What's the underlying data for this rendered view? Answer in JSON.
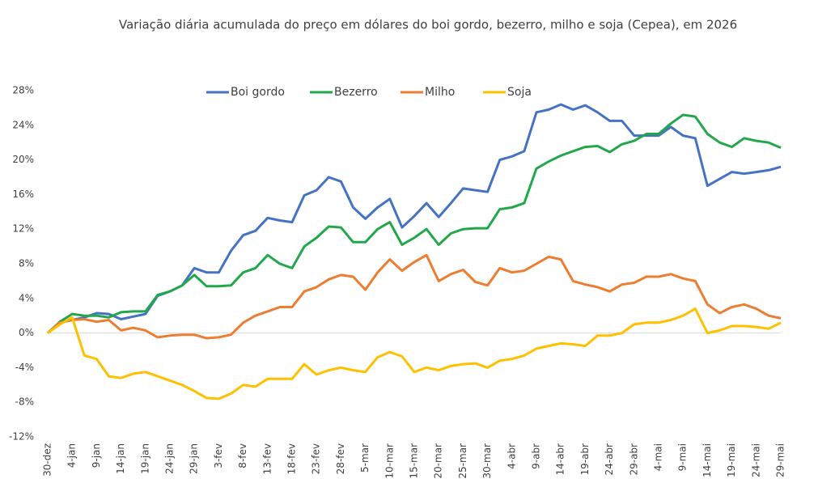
{
  "chart_data": {
    "type": "line",
    "title": "Variação diária acumulada do preço em dólares do boi gordo, bezerro, milho e soja (Cepea), em 2026",
    "categories": [
      "30-dez",
      null,
      "4-jan",
      null,
      "9-jan",
      null,
      "14-jan",
      null,
      "19-jan",
      null,
      "24-jan",
      null,
      "29-jan",
      null,
      "3-fev",
      null,
      "8-fev",
      null,
      "13-fev",
      null,
      "18-fev",
      null,
      "23-fev",
      null,
      "28-fev",
      null,
      "5-mar",
      null,
      "10-mar",
      null,
      "15-mar",
      null,
      "20-mar",
      null,
      "25-mar",
      null,
      "30-mar",
      null,
      "4-abr",
      null,
      "9-abr",
      null,
      "14-abr",
      null,
      "19-abr",
      null,
      "24-abr",
      null,
      "29-abr",
      null,
      "4-mai",
      null,
      "9-mai",
      null,
      "14-mai",
      null,
      "19-mai",
      null,
      "24-mai",
      null,
      "29-mai"
    ],
    "series": [
      {
        "name": "Boi gordo",
        "color": "#4472c4",
        "values": [
          0,
          1.2,
          1.5,
          1.8,
          2.3,
          2.2,
          1.6,
          1.9,
          2.2,
          4.3,
          4.8,
          5.5,
          7.5,
          7.0,
          7.0,
          9.5,
          11.3,
          11.8,
          13.3,
          13.0,
          12.8,
          15.9,
          16.5,
          18.0,
          17.5,
          14.5,
          13.2,
          14.5,
          15.5,
          12.2,
          13.5,
          15.0,
          13.4,
          15.0,
          16.7,
          16.5,
          16.3,
          20.0,
          20.4,
          21.0,
          25.5,
          25.8,
          26.4,
          25.8,
          26.3,
          25.5,
          24.5,
          24.5,
          22.8,
          22.8,
          22.8,
          23.8,
          22.8,
          22.5,
          17.0,
          17.8,
          18.6,
          18.4,
          18.6,
          18.8,
          19.2
        ]
      },
      {
        "name": "Bezerro",
        "color": "#22a84a",
        "values": [
          0,
          1.3,
          2.2,
          2.0,
          2.0,
          1.8,
          2.4,
          2.5,
          2.5,
          4.4,
          4.8,
          5.5,
          6.7,
          5.4,
          5.4,
          5.5,
          7.0,
          7.5,
          9.0,
          8.0,
          7.5,
          10.0,
          11.0,
          12.3,
          12.2,
          10.5,
          10.5,
          12.0,
          12.8,
          10.2,
          11.0,
          12.0,
          10.2,
          11.5,
          12.0,
          12.1,
          12.1,
          14.3,
          14.5,
          15.0,
          19.0,
          19.8,
          20.5,
          21.0,
          21.5,
          21.6,
          20.9,
          21.8,
          22.2,
          23.0,
          23.0,
          24.2,
          25.2,
          25.0,
          23.0,
          22.0,
          21.5,
          22.5,
          22.2,
          22.0,
          21.4
        ]
      },
      {
        "name": "Milho",
        "color": "#ed7d31",
        "values": [
          0,
          1.2,
          1.5,
          1.6,
          1.3,
          1.5,
          0.3,
          0.6,
          0.3,
          -0.5,
          -0.3,
          -0.2,
          -0.2,
          -0.6,
          -0.5,
          -0.2,
          1.2,
          2.0,
          2.5,
          3.0,
          3.0,
          4.8,
          5.3,
          6.2,
          6.7,
          6.5,
          5.0,
          7.0,
          8.5,
          7.2,
          8.2,
          9.0,
          6.0,
          6.8,
          7.3,
          5.9,
          5.5,
          7.5,
          7.0,
          7.2,
          8.0,
          8.8,
          8.5,
          6.0,
          5.6,
          5.3,
          4.8,
          5.6,
          5.8,
          6.5,
          6.5,
          6.8,
          6.3,
          6.0,
          3.3,
          2.3,
          3.0,
          3.3,
          2.8,
          2.0,
          1.7
        ]
      },
      {
        "name": "Soja",
        "color": "#ffc000",
        "values": [
          0,
          1.0,
          1.8,
          -2.6,
          -3.0,
          -5.0,
          -5.2,
          -4.7,
          -4.5,
          -5.0,
          -5.5,
          -6.0,
          -6.7,
          -7.5,
          -7.6,
          -7.0,
          -6.0,
          -6.2,
          -5.3,
          -5.3,
          -5.3,
          -3.6,
          -4.8,
          -4.3,
          -4.0,
          -4.3,
          -4.5,
          -2.8,
          -2.2,
          -2.7,
          -4.5,
          -4.0,
          -4.3,
          -3.8,
          -3.6,
          -3.5,
          -4.0,
          -3.2,
          -3.0,
          -2.6,
          -1.8,
          -1.5,
          -1.2,
          -1.3,
          -1.5,
          -0.3,
          -0.3,
          0.0,
          1.0,
          1.2,
          1.2,
          1.5,
          2.0,
          2.8,
          0.0,
          0.3,
          0.8,
          0.8,
          0.7,
          0.5,
          1.2
        ]
      }
    ],
    "ylim": [
      -12,
      28
    ],
    "yticks": [
      {
        "value": -12,
        "label": "-12%"
      },
      {
        "value": -8,
        "label": "-8%"
      },
      {
        "value": -4,
        "label": "-4%"
      },
      {
        "value": 0,
        "label": "0%"
      },
      {
        "value": 4,
        "label": "4%"
      },
      {
        "value": 8,
        "label": "8%"
      },
      {
        "value": 12,
        "label": "12%"
      },
      {
        "value": 16,
        "label": "16%"
      },
      {
        "value": 20,
        "label": "20%"
      },
      {
        "value": 24,
        "label": "24%"
      },
      {
        "value": 28,
        "label": "28%"
      }
    ],
    "grid": false,
    "legend": "top"
  }
}
